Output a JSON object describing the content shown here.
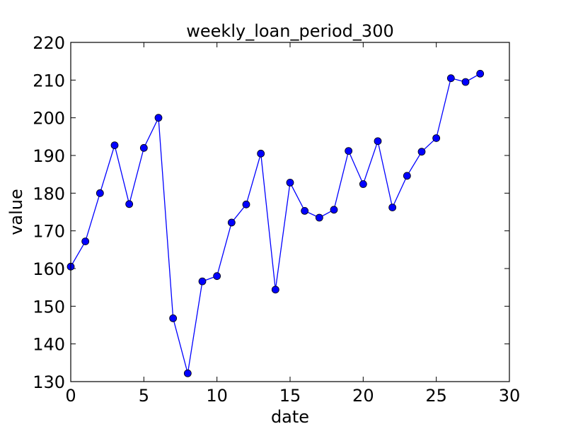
{
  "chart_data": {
    "type": "line",
    "title": "weekly_loan_period_300",
    "xlabel": "date",
    "ylabel": "value",
    "xlim": [
      0,
      30
    ],
    "ylim": [
      130,
      220
    ],
    "xticks": [
      0,
      5,
      10,
      15,
      20,
      25,
      30
    ],
    "yticks": [
      130,
      140,
      150,
      160,
      170,
      180,
      190,
      200,
      210,
      220
    ],
    "grid": false,
    "line_color": "#0000ff",
    "marker": "circle",
    "series": [
      {
        "x": [
          0,
          1,
          2,
          3,
          4,
          5,
          6,
          7,
          8,
          9,
          10,
          11,
          12,
          13,
          14,
          15,
          16,
          17,
          18,
          19,
          20,
          21,
          22,
          23,
          24,
          25,
          26,
          27,
          28
        ],
        "values": [
          160.5,
          167.2,
          180.0,
          192.7,
          177.1,
          192.0,
          200.0,
          146.8,
          132.2,
          156.6,
          158.0,
          172.2,
          177.0,
          190.5,
          154.4,
          182.8,
          175.3,
          173.5,
          175.6,
          191.2,
          182.4,
          193.8,
          176.2,
          184.6,
          191.0,
          194.6,
          210.5,
          209.5,
          211.7
        ]
      }
    ]
  }
}
